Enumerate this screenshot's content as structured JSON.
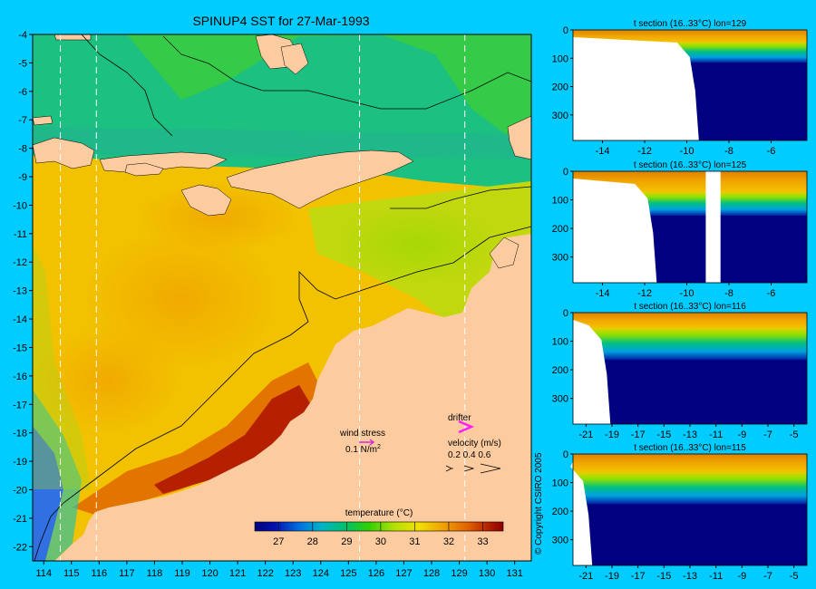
{
  "chart_data": [
    {
      "type": "heatmap",
      "title": "SPINUP4 SST for 27-Mar-1993",
      "x_ticks": [
        114,
        115,
        116,
        117,
        118,
        119,
        120,
        121,
        122,
        123,
        124,
        125,
        126,
        127,
        128,
        129,
        130,
        131
      ],
      "y_ticks": [
        -4,
        -5,
        -6,
        -7,
        -8,
        -9,
        -10,
        -11,
        -12,
        -13,
        -14,
        -15,
        -16,
        -17,
        -18,
        -19,
        -20,
        -21,
        -22
      ],
      "xlim": [
        113.6,
        131.6
      ],
      "ylim": [
        -22.5,
        -4
      ],
      "colorbar": {
        "label": "temperature (°C)",
        "ticks": [
          "27",
          "28",
          "29",
          "30",
          "31",
          "32",
          "33"
        ],
        "range": [
          26.3,
          33.6
        ]
      },
      "annotations": {
        "wind_stress": "wind stress",
        "wind_value": "0.1 N/m",
        "wind_exp": "2",
        "drifter": "drifter",
        "velocity": "velocity (m/s)",
        "velocity_scale": "0.2 0.4 0.6"
      },
      "section_lines_lon": [
        114.6,
        115.9,
        125.4,
        129.2
      ],
      "colors": {
        "background": "#00ccff",
        "land": "#fccca0",
        "warm": "#c8200a",
        "cool": "#00a050",
        "deep": "#000080"
      }
    },
    {
      "type": "heatmap",
      "title": "t section (16..33°C) lon=129",
      "x_ticks": [
        "-14",
        "-12",
        "-10",
        "-8",
        "-6"
      ],
      "y_ticks": [
        "0",
        "100",
        "200",
        "300"
      ],
      "xlim": [
        -15.4,
        -4.3
      ],
      "ylim": [
        390,
        0
      ],
      "land_edge_lat": -9.6,
      "thermocline_depth_m": [
        70,
        90
      ]
    },
    {
      "type": "heatmap",
      "title": "t section (16..33°C) lon=125",
      "x_ticks": [
        "-14",
        "-12",
        "-10",
        "-8",
        "-6"
      ],
      "y_ticks": [
        "0",
        "100",
        "200",
        "300"
      ],
      "xlim": [
        -15.4,
        -4.3
      ],
      "ylim": [
        390,
        0
      ],
      "land_edge_lat": -11.6,
      "island_lat": [
        -9.1,
        -8.4
      ],
      "thermocline_depth_m": [
        100,
        130
      ]
    },
    {
      "type": "heatmap",
      "title": "t section (16..33°C) lon=116",
      "x_ticks": [
        "-21",
        "-19",
        "-17",
        "-15",
        "-13",
        "-11",
        "-9",
        "-7",
        "-5"
      ],
      "y_ticks": [
        "0",
        "100",
        "200",
        "300"
      ],
      "xlim": [
        -22,
        -4
      ],
      "ylim": [
        390,
        0
      ],
      "land_edge_lat": -19.4,
      "thermocline_depth_m": [
        80,
        140
      ]
    },
    {
      "type": "heatmap",
      "title": "t section (16..33°C) lon=115",
      "x_ticks": [
        "-21",
        "-19",
        "-17",
        "-15",
        "-13",
        "-11",
        "-9",
        "-7",
        "-5"
      ],
      "y_ticks": [
        "0",
        "100",
        "200",
        "300"
      ],
      "xlim": [
        -22,
        -4
      ],
      "ylim": [
        390,
        0
      ],
      "land_edge_lat": -20.8,
      "thermocline_depth_m": [
        90,
        150
      ]
    }
  ],
  "copyright": "© Copyright CSIRO 2005"
}
